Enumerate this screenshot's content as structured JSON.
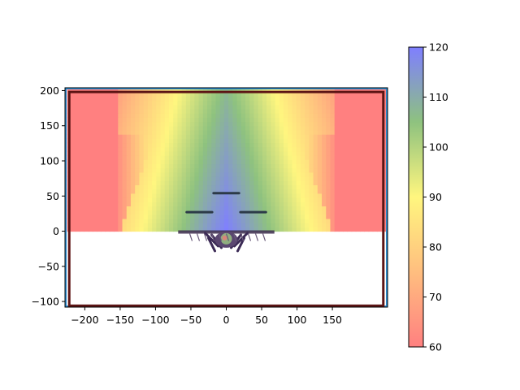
{
  "chart_data": {
    "type": "heatmap",
    "title": "",
    "xlabel": "",
    "ylabel": "",
    "xlim": [
      -228,
      228
    ],
    "ylim": [
      -108,
      204
    ],
    "x_ticks": [
      -200,
      -150,
      -100,
      -50,
      0,
      50,
      100,
      150
    ],
    "x_tick_labels": [
      "−200",
      "−150",
      "−100",
      "−50",
      "0",
      "50",
      "100",
      "150"
    ],
    "y_ticks": [
      -100,
      -50,
      0,
      50,
      100,
      150,
      200
    ],
    "y_tick_labels": [
      "−100",
      "−50",
      "0",
      "50",
      "100",
      "150",
      "200"
    ],
    "heatmap_region": {
      "x": [
        -225,
        225
      ],
      "y": [
        0,
        200
      ]
    },
    "value_model": {
      "apex_value": 120,
      "apex_point": [
        0,
        0
      ],
      "floor_value": 60,
      "description_levels": [
        {
          "y": 0,
          "center_half_width_x": 20,
          "value": 120
        },
        {
          "y": 50,
          "center_half_width_x": 40,
          "value": 108
        },
        {
          "y": 150,
          "center_half_width_x": 100,
          "value": 94
        }
      ]
    },
    "colorbar": {
      "min": 60,
      "max": 120,
      "ticks": [
        60,
        70,
        80,
        90,
        100,
        110,
        120
      ],
      "tick_labels": [
        "60",
        "70",
        "80",
        "90",
        "100",
        "110",
        "120"
      ],
      "colors": [
        "#ff8080",
        "#ffbe7f",
        "#fff67f",
        "#8ec27f",
        "#7f7fff"
      ]
    },
    "arena_border": {
      "x": [
        -222,
        222
      ],
      "y": [
        -106,
        198
      ],
      "color": "#5c1414"
    },
    "outer_border": {
      "x": [
        -228,
        228
      ],
      "y": [
        -108,
        204
      ],
      "color": "#2a8fd6"
    },
    "platforms": [
      {
        "x": [
          -56,
          -20
        ],
        "y": 27
      },
      {
        "x": 20,
        "x2": 56,
        "y": 27
      },
      {
        "x": [
          -18,
          18
        ],
        "y": 54
      }
    ],
    "character_marker": {
      "x": 0,
      "y": -12,
      "icon": "game-character-sprite"
    },
    "stage_edge": {
      "x": [
        -68,
        68
      ],
      "y": 0
    }
  }
}
